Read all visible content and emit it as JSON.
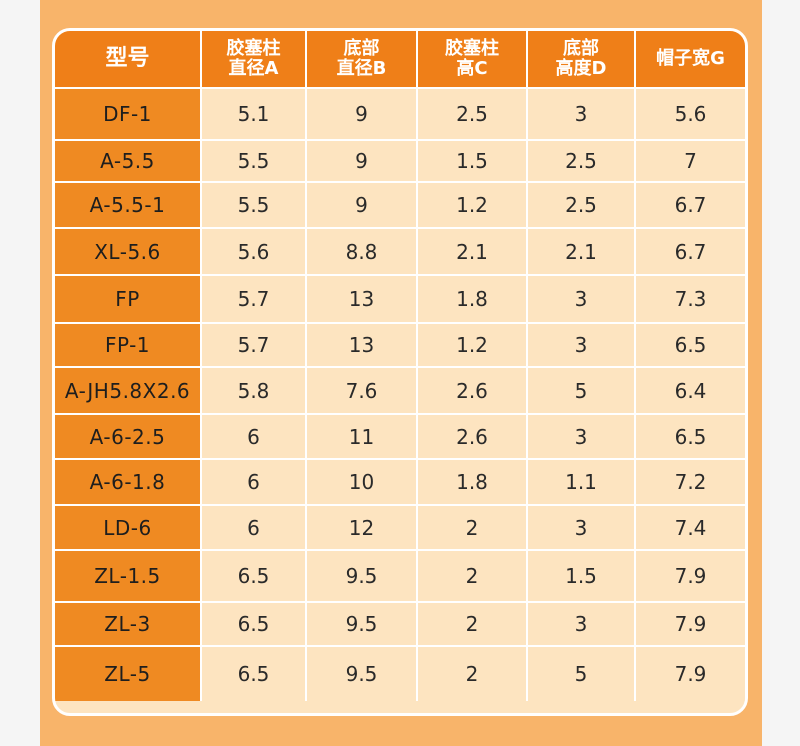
{
  "table": {
    "headers": [
      {
        "line1": "型号",
        "line2": ""
      },
      {
        "line1": "胶塞柱",
        "line2": "直径A"
      },
      {
        "line1": "底部",
        "line2": "直径B"
      },
      {
        "line1": "胶塞柱",
        "line2": "高C"
      },
      {
        "line1": "底部",
        "line2": "高度D"
      },
      {
        "line1": "帽子宽G",
        "line2": ""
      }
    ],
    "rows": [
      [
        "DF-1",
        "5.1",
        "9",
        "2.5",
        "3",
        "5.6"
      ],
      [
        "A-5.5",
        "5.5",
        "9",
        "1.5",
        "2.5",
        "7"
      ],
      [
        "A-5.5-1",
        "5.5",
        "9",
        "1.2",
        "2.5",
        "6.7"
      ],
      [
        "XL-5.6",
        "5.6",
        "8.8",
        "2.1",
        "2.1",
        "6.7"
      ],
      [
        "FP",
        "5.7",
        "13",
        "1.8",
        "3",
        "7.3"
      ],
      [
        "FP-1",
        "5.7",
        "13",
        "1.2",
        "3",
        "6.5"
      ],
      [
        "A-JH5.8X2.6",
        "5.8",
        "7.6",
        "2.6",
        "5",
        "6.4"
      ],
      [
        "A-6-2.5",
        "6",
        "11",
        "2.6",
        "3",
        "6.5"
      ],
      [
        "A-6-1.8",
        "6",
        "10",
        "1.8",
        "1.1",
        "7.2"
      ],
      [
        "LD-6",
        "6",
        "12",
        "2",
        "3",
        "7.4"
      ],
      [
        "ZL-1.5",
        "6.5",
        "9.5",
        "2",
        "1.5",
        "7.9"
      ],
      [
        "ZL-3",
        "6.5",
        "9.5",
        "2",
        "3",
        "7.9"
      ],
      [
        "ZL-5",
        "6.5",
        "9.5",
        "2",
        "5",
        "7.9"
      ]
    ]
  },
  "colors": {
    "header_bg": "#ef7f18",
    "model_col_bg": "#ef8a22",
    "cell_bg": "#fde4c0",
    "panel_bg": "#f8b46a"
  }
}
